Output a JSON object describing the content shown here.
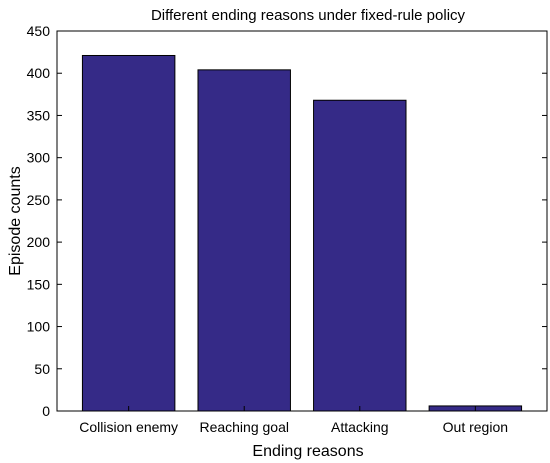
{
  "chart_data": {
    "type": "bar",
    "title": "Different ending reasons under fixed-rule policy",
    "xlabel": "Ending reasons",
    "ylabel": "Episode counts",
    "categories": [
      "Collision enemy",
      "Reaching goal",
      "Attacking",
      "Out region"
    ],
    "values": [
      421,
      404,
      368,
      6
    ],
    "ylim": [
      0,
      450
    ],
    "yticks": [
      0,
      50,
      100,
      150,
      200,
      250,
      300,
      350,
      400,
      450
    ],
    "bar_color": "#352a87",
    "grid": false
  }
}
